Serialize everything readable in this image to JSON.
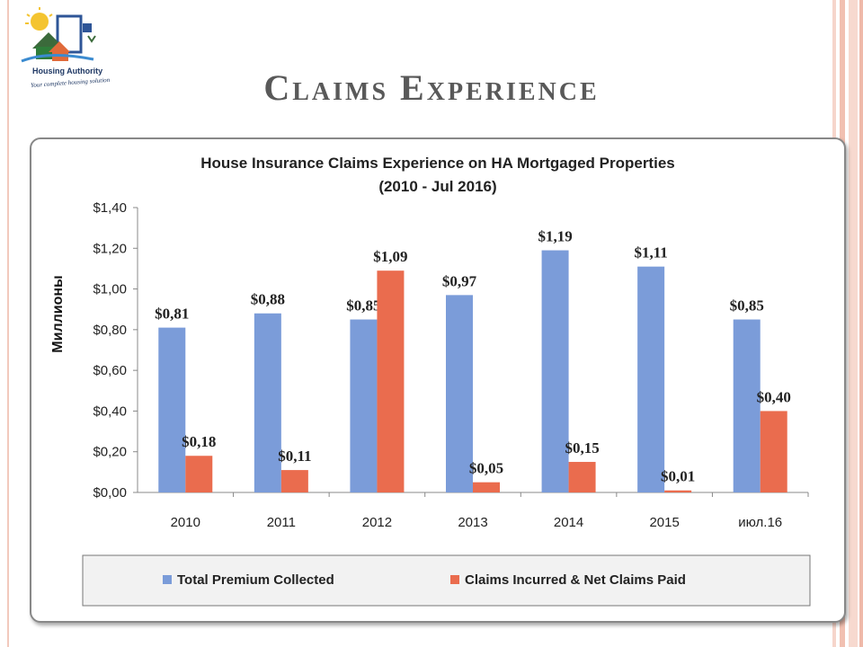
{
  "slide": {
    "title": "Claims Experience",
    "logo": {
      "org_name": "Housing Authority",
      "tagline": "Your complete housing solution"
    }
  },
  "chart_data": {
    "type": "bar",
    "title": "House Insurance Claims Experience on HA Mortgaged Properties",
    "subtitle": "(2010 - Jul 2016)",
    "ylabel": "Миллионы",
    "xlabel": "",
    "categories": [
      "2010",
      "2011",
      "2012",
      "2013",
      "2014",
      "2015",
      "июл.16"
    ],
    "series": [
      {
        "name": "Total Premium Collected",
        "color": "#7b9cd9",
        "values": [
          0.81,
          0.88,
          0.85,
          0.97,
          1.19,
          1.11,
          0.85
        ],
        "labels": [
          "$0,81",
          "$0,88",
          "$0,85",
          "$0,97",
          "$1,19",
          "$1,11",
          "$0,85"
        ]
      },
      {
        "name": "Claims Incurred & Net Claims Paid",
        "color": "#ea6c4e",
        "values": [
          0.18,
          0.11,
          1.09,
          0.05,
          0.15,
          0.01,
          0.4
        ],
        "labels": [
          "$0,18",
          "$0,11",
          "$1,09",
          "$0,05",
          "$0,15",
          "$0,01",
          "$0,40"
        ]
      }
    ],
    "ylim": [
      0,
      1.4
    ],
    "yticks": [
      0,
      0.2,
      0.4,
      0.6,
      0.8,
      1.0,
      1.2,
      1.4
    ],
    "ytick_labels": [
      "$0,00",
      "$0,20",
      "$0,40",
      "$0,60",
      "$0,80",
      "$1,00",
      "$1,20",
      "$1,40"
    ],
    "grid": false,
    "legend_position": "bottom"
  }
}
